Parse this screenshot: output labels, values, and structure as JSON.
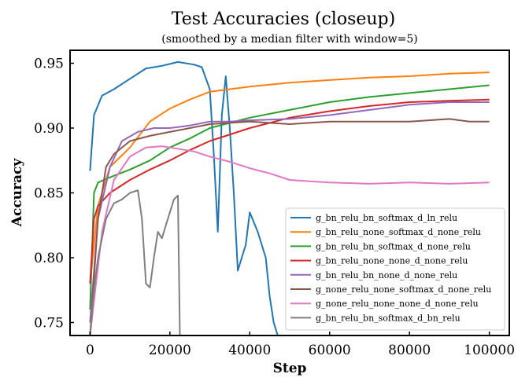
{
  "chart_data": {
    "type": "line",
    "title": "Test Accuracies (closeup)",
    "subtitle": "(smoothed by a median filter with window=5)",
    "xlabel": "Step",
    "ylabel": "Accuracy",
    "xlim": [
      -5000,
      105000
    ],
    "ylim": [
      0.74,
      0.96
    ],
    "xticks": [
      0,
      20000,
      40000,
      60000,
      80000,
      100000
    ],
    "xtick_labels": [
      "0",
      "20000",
      "40000",
      "60000",
      "80000",
      "100000"
    ],
    "yticks": [
      0.75,
      0.8,
      0.85,
      0.9,
      0.95
    ],
    "ytick_labels": [
      "0.75",
      "0.80",
      "0.85",
      "0.90",
      "0.95"
    ],
    "grid": false,
    "legend_position": "lower-right",
    "series": [
      {
        "name": "g_bn_relu_bn_softmax_d_ln_relu",
        "color": "#1f77b4",
        "x": [
          0,
          1000,
          3000,
          6000,
          10000,
          14000,
          18000,
          22000,
          26000,
          28000,
          30000,
          31000,
          32000,
          33000,
          34000,
          35000,
          36000,
          37000,
          38000,
          39000,
          40000,
          42000,
          44000,
          45000,
          46000,
          47000
        ],
        "y": [
          0.867,
          0.91,
          0.925,
          0.93,
          0.938,
          0.946,
          0.948,
          0.951,
          0.949,
          0.947,
          0.93,
          0.88,
          0.82,
          0.91,
          0.94,
          0.9,
          0.85,
          0.79,
          0.8,
          0.81,
          0.835,
          0.82,
          0.8,
          0.77,
          0.75,
          0.74
        ]
      },
      {
        "name": "g_bn_relu_none_softmax_d_none_relu",
        "color": "#ff7f0e",
        "x": [
          0,
          2000,
          5000,
          10000,
          15000,
          20000,
          25000,
          30000,
          35000,
          40000,
          50000,
          60000,
          70000,
          80000,
          90000,
          100000
        ],
        "y": [
          0.78,
          0.84,
          0.87,
          0.885,
          0.905,
          0.915,
          0.922,
          0.928,
          0.93,
          0.932,
          0.935,
          0.937,
          0.939,
          0.94,
          0.942,
          0.943
        ]
      },
      {
        "name": "g_bn_relu_bn_softmax_d_none_relu",
        "color": "#2ca02c",
        "x": [
          0,
          1000,
          2000,
          5000,
          10000,
          15000,
          20000,
          25000,
          30000,
          40000,
          50000,
          60000,
          70000,
          80000,
          90000,
          100000
        ],
        "y": [
          0.76,
          0.85,
          0.858,
          0.862,
          0.868,
          0.875,
          0.885,
          0.892,
          0.9,
          0.908,
          0.914,
          0.92,
          0.924,
          0.927,
          0.93,
          0.933
        ]
      },
      {
        "name": "g_bn_relu_none_none_d_none_relu",
        "color": "#d62728",
        "x": [
          0,
          1000,
          2000,
          5000,
          10000,
          15000,
          20000,
          25000,
          30000,
          40000,
          50000,
          60000,
          70000,
          80000,
          90000,
          100000
        ],
        "y": [
          0.78,
          0.83,
          0.84,
          0.85,
          0.86,
          0.868,
          0.875,
          0.883,
          0.89,
          0.9,
          0.908,
          0.913,
          0.917,
          0.92,
          0.921,
          0.922
        ]
      },
      {
        "name": "g_bn_relu_bn_none_d_none_relu",
        "color": "#9467bd",
        "x": [
          0,
          2000,
          5000,
          8000,
          12000,
          16000,
          20000,
          25000,
          30000,
          35000,
          40000,
          50000,
          60000,
          70000,
          80000,
          90000,
          100000
        ],
        "y": [
          0.75,
          0.83,
          0.87,
          0.89,
          0.897,
          0.9,
          0.9,
          0.902,
          0.905,
          0.905,
          0.906,
          0.907,
          0.91,
          0.914,
          0.918,
          0.92,
          0.92
        ]
      },
      {
        "name": "g_none_relu_none_softmax_d_none_relu",
        "color": "#8c564b",
        "x": [
          0,
          2000,
          4000,
          6000,
          10000,
          15000,
          20000,
          25000,
          30000,
          40000,
          50000,
          60000,
          70000,
          80000,
          90000,
          95000,
          100000
        ],
        "y": [
          0.74,
          0.83,
          0.87,
          0.88,
          0.89,
          0.894,
          0.897,
          0.9,
          0.903,
          0.905,
          0.903,
          0.905,
          0.905,
          0.905,
          0.907,
          0.905,
          0.905
        ]
      },
      {
        "name": "g_none_relu_none_none_d_none_relu",
        "color": "#e377c2",
        "x": [
          0,
          3000,
          6000,
          10000,
          14000,
          18000,
          22000,
          26000,
          30000,
          35000,
          40000,
          45000,
          50000,
          55000,
          60000,
          70000,
          80000,
          90000,
          100000
        ],
        "y": [
          0.74,
          0.82,
          0.86,
          0.878,
          0.885,
          0.886,
          0.884,
          0.882,
          0.878,
          0.874,
          0.869,
          0.865,
          0.86,
          0.859,
          0.858,
          0.857,
          0.858,
          0.857,
          0.858
        ]
      },
      {
        "name": "g_bn_relu_bn_softmax_d_bn_relu",
        "color": "#7f7f7f",
        "x": [
          0,
          1000,
          2000,
          4000,
          6000,
          8000,
          10000,
          12000,
          13000,
          14000,
          15000,
          16000,
          17000,
          18000,
          19000,
          20000,
          21000,
          22000,
          22500
        ],
        "y": [
          0.74,
          0.775,
          0.8,
          0.83,
          0.842,
          0.845,
          0.85,
          0.852,
          0.83,
          0.78,
          0.777,
          0.8,
          0.82,
          0.815,
          0.825,
          0.835,
          0.845,
          0.848,
          0.74
        ]
      }
    ]
  }
}
